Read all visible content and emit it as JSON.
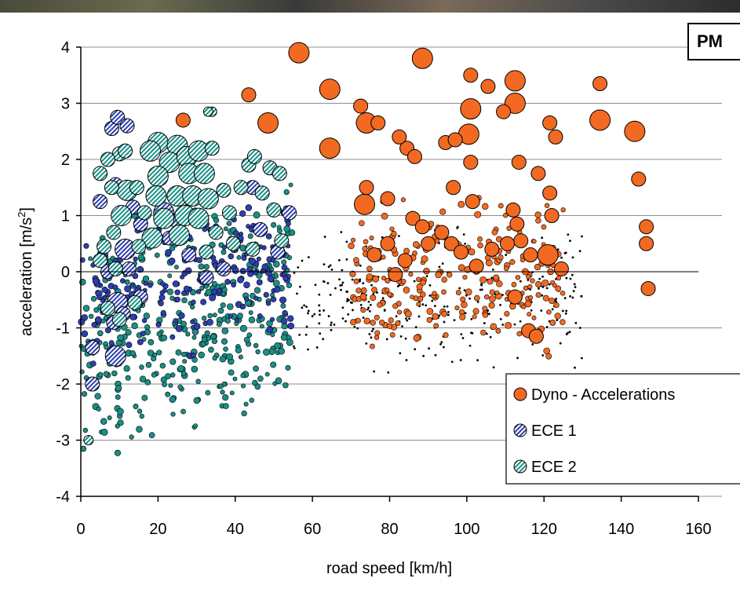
{
  "chart_data": {
    "type": "scatter",
    "title": "PM",
    "xlabel": "road speed [km/h]",
    "ylabel": "acceleration [m/s",
    "ylabel_sup": "2",
    "ylabel_end": "]",
    "xlim": [
      0,
      160
    ],
    "ylim": [
      -4,
      4
    ],
    "xticks": [
      0,
      20,
      40,
      60,
      80,
      100,
      120,
      140,
      160
    ],
    "yticks": [
      -4,
      -3,
      -2,
      -1,
      0,
      1,
      2,
      3,
      4
    ],
    "grid": "horizontal",
    "legend_position": "bottom-right",
    "colors": {
      "dyno": "#f26a21",
      "ece1": "#2d3fb0",
      "ece2": "#1a8f86",
      "small": "#000000"
    },
    "series": [
      {
        "name": "Dyno - Accelerations",
        "marker": "circle",
        "points": [
          [
            56.5,
            3.9,
            3
          ],
          [
            88.5,
            3.8,
            3
          ],
          [
            101,
            3.5,
            2
          ],
          [
            105.5,
            3.3,
            2
          ],
          [
            112.5,
            3.4,
            3
          ],
          [
            64.5,
            3.25,
            3
          ],
          [
            134.5,
            3.35,
            2
          ],
          [
            101,
            2.9,
            3
          ],
          [
            112.5,
            3.0,
            3
          ],
          [
            109.5,
            2.85,
            2
          ],
          [
            74,
            2.65,
            3
          ],
          [
            72.5,
            2.95,
            2
          ],
          [
            77,
            2.65,
            2
          ],
          [
            48.5,
            2.65,
            3
          ],
          [
            26.5,
            2.7,
            2
          ],
          [
            121.5,
            2.65,
            2
          ],
          [
            134.5,
            2.7,
            3
          ],
          [
            143.5,
            2.5,
            3
          ],
          [
            100.5,
            2.45,
            3
          ],
          [
            123,
            2.4,
            2
          ],
          [
            94.5,
            2.3,
            2
          ],
          [
            97,
            2.35,
            2
          ],
          [
            64.5,
            2.2,
            3
          ],
          [
            84.5,
            2.2,
            2
          ],
          [
            101,
            1.95,
            2
          ],
          [
            113.5,
            1.95,
            2
          ],
          [
            82.5,
            2.4,
            2
          ],
          [
            86.5,
            2.05,
            2
          ],
          [
            118.5,
            1.75,
            2
          ],
          [
            121.5,
            1.4,
            2
          ],
          [
            144.5,
            1.65,
            2
          ],
          [
            73.5,
            1.2,
            3
          ],
          [
            74,
            1.5,
            2
          ],
          [
            79.5,
            1.3,
            2
          ],
          [
            96.5,
            1.5,
            2
          ],
          [
            112,
            1.1,
            2
          ],
          [
            122,
            1.0,
            2
          ],
          [
            101.5,
            1.25,
            2
          ],
          [
            86,
            0.95,
            2
          ],
          [
            88.5,
            0.8,
            2
          ],
          [
            93.5,
            0.7,
            2
          ],
          [
            146.5,
            0.8,
            2
          ],
          [
            146.5,
            0.5,
            2
          ],
          [
            121,
            0.3,
            3
          ],
          [
            124.5,
            0.05,
            2
          ],
          [
            114,
            0.55,
            2
          ],
          [
            116.5,
            0.3,
            2
          ],
          [
            102.5,
            0.1,
            2
          ],
          [
            96,
            0.5,
            2
          ],
          [
            84,
            0.2,
            2
          ],
          [
            79.5,
            0.5,
            2
          ],
          [
            112.5,
            -0.45,
            2
          ],
          [
            147,
            -0.3,
            2
          ],
          [
            116,
            -1.05,
            2
          ],
          [
            118,
            -1.15,
            2
          ],
          [
            113,
            0.85,
            2
          ],
          [
            76,
            0.3,
            2
          ],
          [
            81.5,
            -0.05,
            2
          ],
          [
            90,
            0.5,
            2
          ],
          [
            98.5,
            0.35,
            2
          ],
          [
            106.5,
            0.4,
            2
          ],
          [
            110.5,
            0.5,
            2
          ],
          [
            43.5,
            3.15,
            2
          ]
        ]
      },
      {
        "name": "ECE 1",
        "marker": "circle-hatch",
        "points": [
          [
            8,
            2.55,
            2
          ],
          [
            9.5,
            2.75,
            2
          ],
          [
            12,
            2.6,
            2
          ],
          [
            9,
            1.55,
            2
          ],
          [
            5,
            1.25,
            2
          ],
          [
            13.5,
            1.15,
            2
          ],
          [
            11.5,
            0.4,
            3
          ],
          [
            12.5,
            0.05,
            2
          ],
          [
            9.5,
            -0.55,
            3
          ],
          [
            11,
            -0.75,
            2
          ],
          [
            8.5,
            -0.9,
            2
          ],
          [
            9,
            -1.5,
            3
          ],
          [
            3,
            -1.35,
            2
          ],
          [
            3,
            -2.0,
            2
          ],
          [
            15.5,
            -0.45,
            2
          ],
          [
            15.5,
            0.85,
            2
          ],
          [
            21.5,
            1.05,
            3
          ],
          [
            23,
            0.6,
            2
          ],
          [
            28,
            0.3,
            2
          ],
          [
            32.5,
            -0.1,
            2
          ],
          [
            37,
            0.05,
            2
          ],
          [
            44.5,
            1.5,
            2
          ],
          [
            46.5,
            0.75,
            2
          ],
          [
            51,
            0.35,
            2
          ],
          [
            54,
            1.05,
            2
          ],
          [
            19,
            1.35,
            2
          ],
          [
            25,
            0.9,
            2
          ],
          [
            7,
            0.0,
            2
          ]
        ]
      },
      {
        "name": "ECE 2",
        "marker": "circle-hatch",
        "points": [
          [
            20,
            2.3,
            3
          ],
          [
            25,
            2.25,
            3
          ],
          [
            23,
            1.95,
            3
          ],
          [
            27.5,
            2.05,
            3
          ],
          [
            30.5,
            2.15,
            3
          ],
          [
            18,
            2.15,
            3
          ],
          [
            20,
            1.7,
            3
          ],
          [
            28,
            1.75,
            3
          ],
          [
            32,
            1.75,
            3
          ],
          [
            34,
            2.2,
            2
          ],
          [
            19.5,
            1.35,
            3
          ],
          [
            25,
            1.35,
            3
          ],
          [
            29,
            1.35,
            3
          ],
          [
            33,
            1.3,
            3
          ],
          [
            21.5,
            0.95,
            3
          ],
          [
            27,
            1.0,
            3
          ],
          [
            30.5,
            0.95,
            3
          ],
          [
            18.5,
            0.6,
            3
          ],
          [
            25.5,
            0.65,
            3
          ],
          [
            12,
            1.45,
            3
          ],
          [
            14.5,
            1.5,
            2
          ],
          [
            8,
            1.5,
            2
          ],
          [
            10.5,
            1.0,
            3
          ],
          [
            8.5,
            0.7,
            2
          ],
          [
            6,
            0.45,
            2
          ],
          [
            15,
            0.45,
            2
          ],
          [
            16.5,
            1.05,
            2
          ],
          [
            10,
            2.1,
            2
          ],
          [
            11.5,
            2.15,
            2
          ],
          [
            7,
            2.0,
            2
          ],
          [
            5,
            1.75,
            2
          ],
          [
            43.5,
            1.9,
            2
          ],
          [
            45,
            2.05,
            2
          ],
          [
            49,
            1.85,
            2
          ],
          [
            51.5,
            1.75,
            2
          ],
          [
            41.5,
            1.5,
            2
          ],
          [
            47,
            1.4,
            2
          ],
          [
            50,
            1.1,
            2
          ],
          [
            37,
            1.45,
            2
          ],
          [
            38.5,
            1.05,
            2
          ],
          [
            35,
            0.7,
            2
          ],
          [
            39.5,
            0.5,
            2
          ],
          [
            32.5,
            0.35,
            2
          ],
          [
            44.5,
            0.4,
            2
          ],
          [
            52,
            0.55,
            2
          ],
          [
            10,
            -0.85,
            2
          ],
          [
            7,
            -0.65,
            2
          ],
          [
            14,
            -0.55,
            2
          ],
          [
            5,
            0.2,
            2
          ],
          [
            9,
            0.05,
            2
          ],
          [
            2,
            -3.0,
            1
          ],
          [
            34,
            2.85,
            1
          ],
          [
            33,
            2.85,
            1
          ]
        ]
      }
    ],
    "legend": [
      {
        "label": "Dyno - Accelerations",
        "series": 0
      },
      {
        "label": "ECE 1",
        "series": 1
      },
      {
        "label": "ECE 2",
        "series": 2
      }
    ]
  }
}
